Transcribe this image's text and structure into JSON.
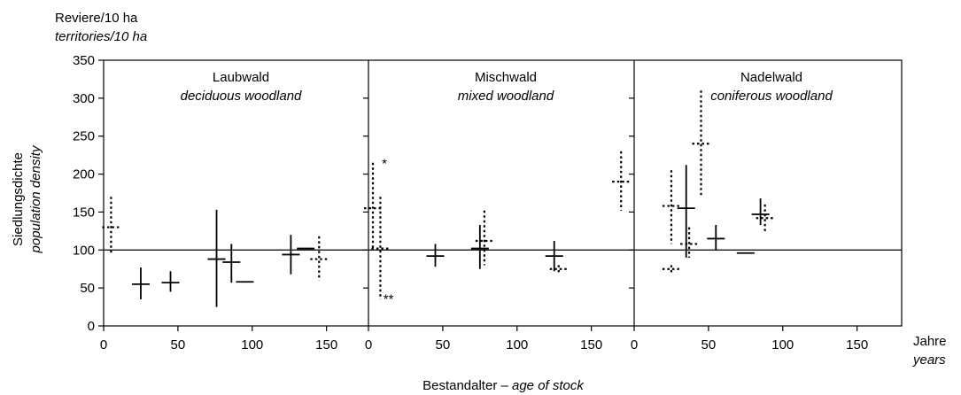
{
  "chart_data": {
    "type": "scatter",
    "y_axis": {
      "label_top_line1": "Reviere/10 ha",
      "label_top_line2": "territories/10 ha",
      "label_side_line1": "Siedlungsdichte",
      "label_side_line2": "population density",
      "ylim": [
        0,
        350
      ],
      "ticks": [
        0,
        50,
        100,
        150,
        200,
        250,
        300,
        350
      ],
      "reference_line": 100
    },
    "x_axis": {
      "label_main": "Bestandalter – ",
      "label_italic": "age of stock",
      "unit_line1": "Jahre",
      "unit_line2": "years",
      "xlim": [
        0,
        180
      ],
      "ticks": [
        0,
        50,
        100,
        150
      ]
    },
    "panels": [
      {
        "title": "Laubwald",
        "subtitle": "deciduous woodland",
        "points": [
          {
            "x": 5,
            "y": 130,
            "ylow": 95,
            "yhigh": 170,
            "style": "dotted"
          },
          {
            "x": 25,
            "y": 55,
            "ylow": 35,
            "yhigh": 77,
            "style": "solid"
          },
          {
            "x": 45,
            "y": 57,
            "ylow": 45,
            "yhigh": 72,
            "style": "solid"
          },
          {
            "x": 76,
            "y": 88,
            "ylow": 25,
            "yhigh": 153,
            "style": "solid"
          },
          {
            "x": 86,
            "y": 84,
            "ylow": 57,
            "yhigh": 108,
            "style": "solid"
          },
          {
            "x": 95,
            "y": 58,
            "ylow": 58,
            "yhigh": 58,
            "style": "solid"
          },
          {
            "x": 126,
            "y": 94,
            "ylow": 68,
            "yhigh": 120,
            "style": "solid"
          },
          {
            "x": 136,
            "y": 102,
            "ylow": 102,
            "yhigh": 102,
            "style": "solid"
          },
          {
            "x": 145,
            "y": 88,
            "ylow": 60,
            "yhigh": 118,
            "style": "dotted"
          }
        ]
      },
      {
        "title": "Mischwald",
        "subtitle": "mixed woodland",
        "annotations": [
          "*",
          "**"
        ],
        "points": [
          {
            "x": 3,
            "y": 155,
            "ylow": 100,
            "yhigh": 215,
            "style": "dotted"
          },
          {
            "x": 8,
            "y": 102,
            "ylow": 35,
            "yhigh": 170,
            "style": "dotted"
          },
          {
            "x": 45,
            "y": 92,
            "ylow": 78,
            "yhigh": 108,
            "style": "solid"
          },
          {
            "x": 75,
            "y": 102,
            "ylow": 75,
            "yhigh": 133,
            "style": "solid"
          },
          {
            "x": 78,
            "y": 112,
            "ylow": 80,
            "yhigh": 152,
            "style": "dotted"
          },
          {
            "x": 125,
            "y": 92,
            "ylow": 72,
            "yhigh": 112,
            "style": "solid"
          },
          {
            "x": 128,
            "y": 75,
            "ylow": 70,
            "yhigh": 80,
            "style": "dotted"
          },
          {
            "x": 170,
            "y": 190,
            "ylow": 152,
            "yhigh": 230,
            "style": "dotted"
          }
        ]
      },
      {
        "title": "Nadelwald",
        "subtitle": "coniferous woodland",
        "points": [
          {
            "x": 25,
            "y": 158,
            "ylow": 108,
            "yhigh": 205,
            "style": "dotted"
          },
          {
            "x": 25,
            "y": 75,
            "ylow": 70,
            "yhigh": 80,
            "style": "dotted"
          },
          {
            "x": 35,
            "y": 155,
            "ylow": 90,
            "yhigh": 212,
            "style": "solid"
          },
          {
            "x": 37,
            "y": 108,
            "ylow": 90,
            "yhigh": 130,
            "style": "dotted"
          },
          {
            "x": 45,
            "y": 240,
            "ylow": 170,
            "yhigh": 310,
            "style": "dotted"
          },
          {
            "x": 55,
            "y": 115,
            "ylow": 100,
            "yhigh": 133,
            "style": "solid"
          },
          {
            "x": 75,
            "y": 96,
            "ylow": 96,
            "yhigh": 96,
            "style": "solid"
          },
          {
            "x": 85,
            "y": 147,
            "ylow": 133,
            "yhigh": 168,
            "style": "solid"
          },
          {
            "x": 88,
            "y": 142,
            "ylow": 125,
            "yhigh": 160,
            "style": "dotted"
          }
        ]
      }
    ]
  }
}
